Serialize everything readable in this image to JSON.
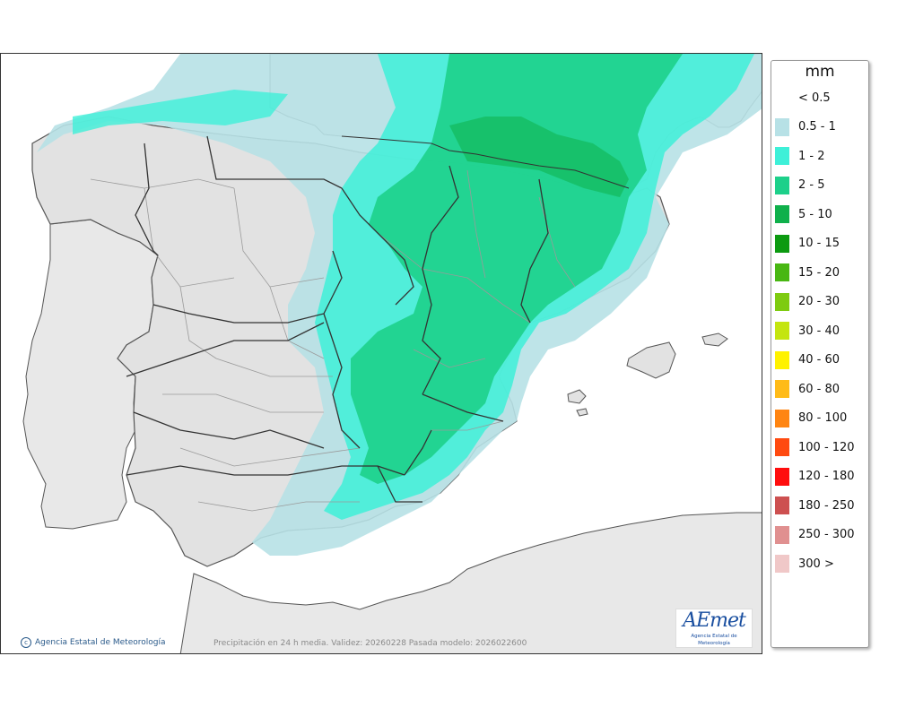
{
  "map": {
    "credit": "Agencia Estatal de Meteorología",
    "caption": "Precipitación en 24 h media. Validez: 20260228 Pasada modelo: 2026022600",
    "logo_text": "AEmet",
    "logo_subtitle": "Agencia Estatal de Meteorología"
  },
  "legend": {
    "unit": "mm",
    "classes": [
      {
        "label": "< 0.5",
        "color": "#ffffff"
      },
      {
        "label": "0.5 - 1",
        "color": "#b7e1e6"
      },
      {
        "label": "1 - 2",
        "color": "#3ef0d8"
      },
      {
        "label": "2 - 5",
        "color": "#1dd08a"
      },
      {
        "label": "5 - 10",
        "color": "#0fb04b"
      },
      {
        "label": "10 - 15",
        "color": "#0c9a11"
      },
      {
        "label": "15 - 20",
        "color": "#48b712"
      },
      {
        "label": "20 - 30",
        "color": "#7ecb10"
      },
      {
        "label": "30 - 40",
        "color": "#c4e50f"
      },
      {
        "label": "40 - 60",
        "color": "#fff200"
      },
      {
        "label": "60 - 80",
        "color": "#ffbb18"
      },
      {
        "label": "80 - 100",
        "color": "#ff8512"
      },
      {
        "label": "100 - 120",
        "color": "#ff4a10"
      },
      {
        "label": "120 - 180",
        "color": "#ff0d0d"
      },
      {
        "label": "180 - 250",
        "color": "#cd5050"
      },
      {
        "label": "250 - 300",
        "color": "#e09090"
      },
      {
        "label": "300 >",
        "color": "#f0c8c8"
      }
    ]
  },
  "colors": {
    "sea": "#ffffff",
    "land": "#e8e8e8",
    "relief": "#d0d0d0",
    "province_border": "#9a9a9a",
    "region_border": "#333333"
  }
}
